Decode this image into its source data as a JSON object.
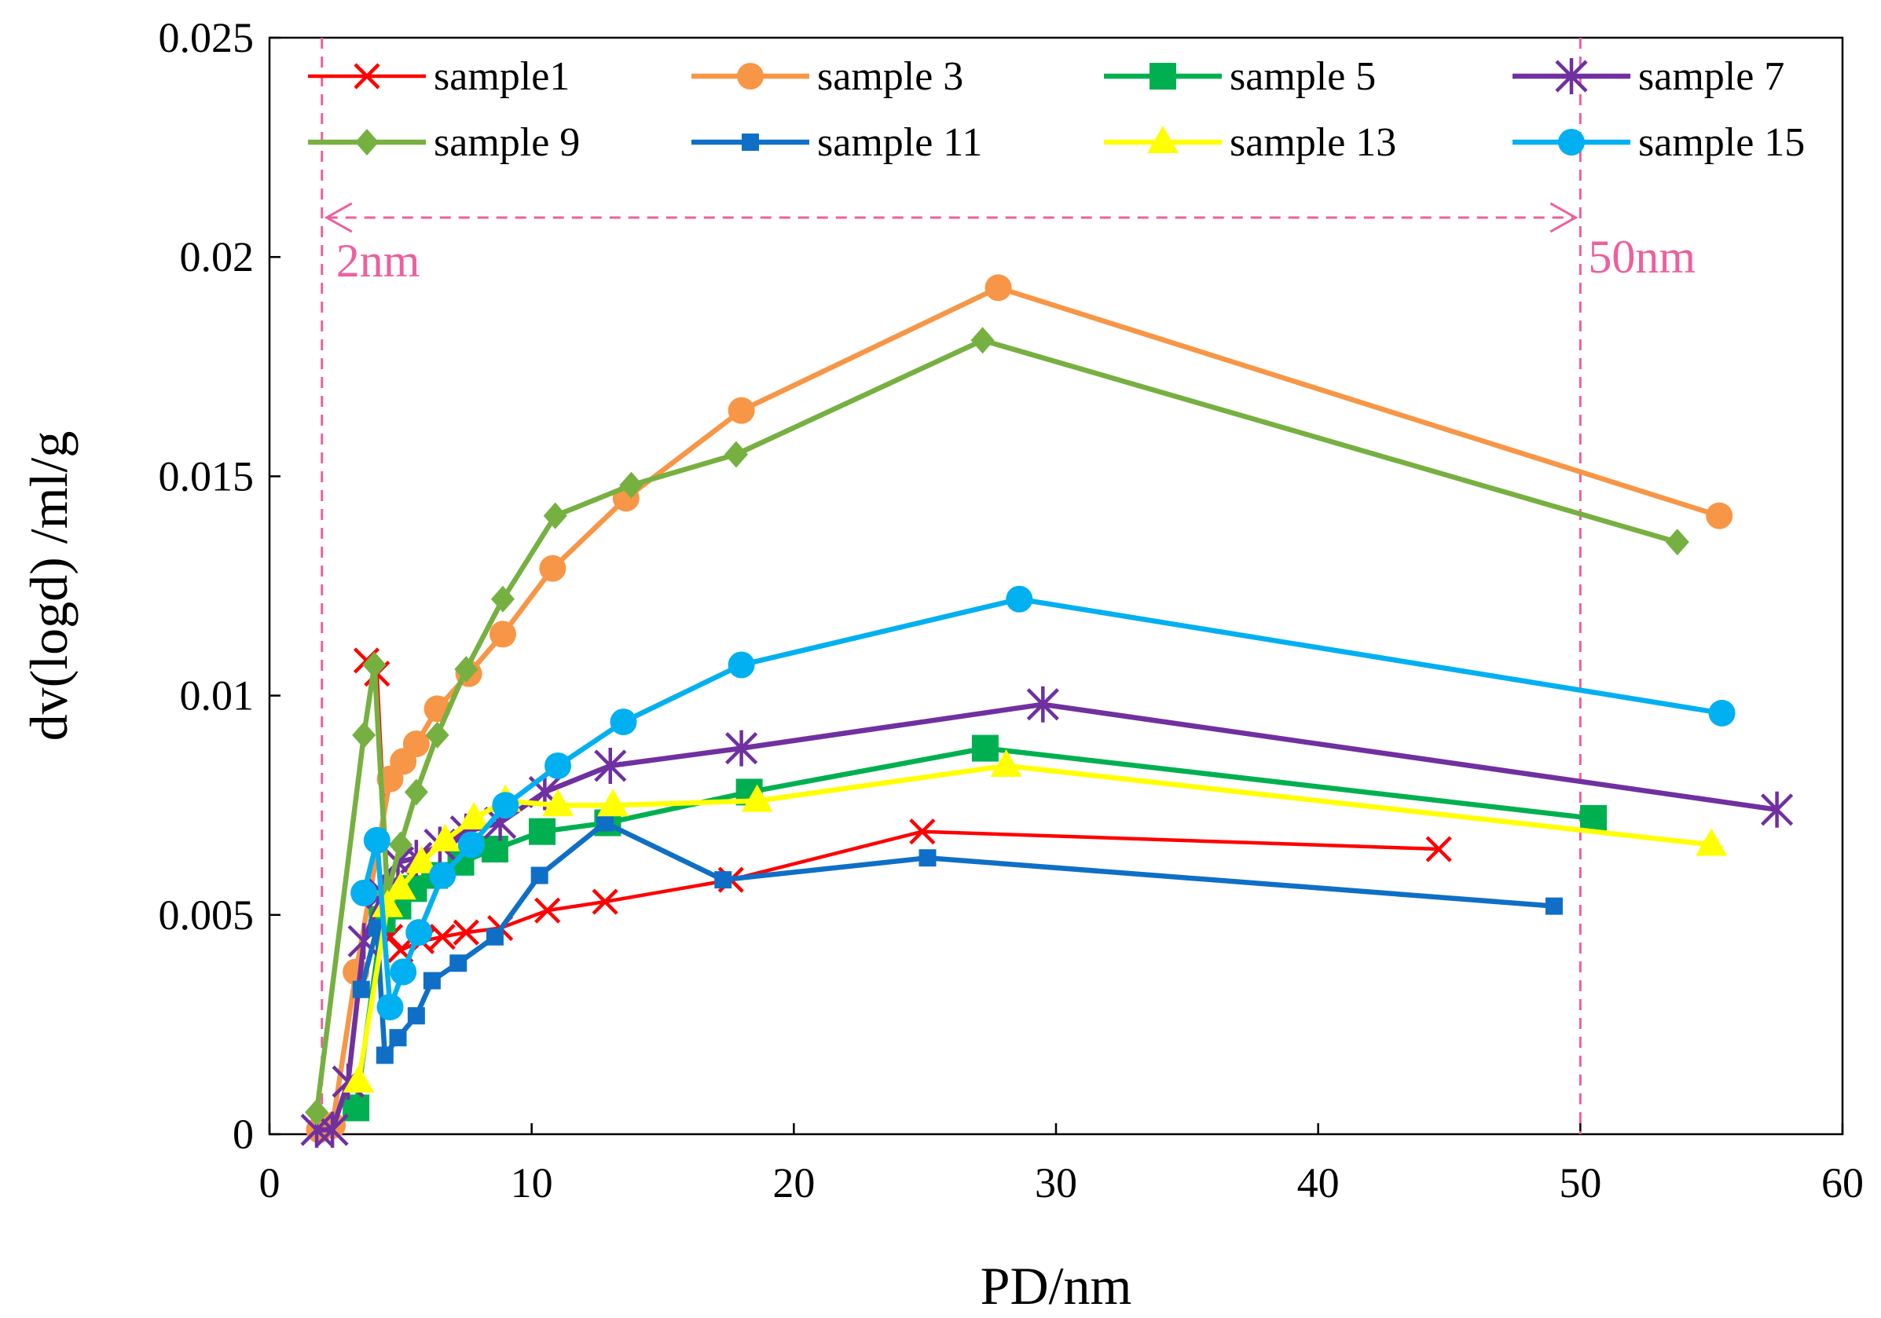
{
  "chart_data": {
    "type": "line",
    "title": "",
    "xlabel": "PD/nm",
    "ylabel": "dv(logd) /ml/g",
    "xlim": [
      0,
      60
    ],
    "ylim": [
      0,
      0.025
    ],
    "x_ticks": [
      0,
      10,
      20,
      30,
      40,
      50,
      60
    ],
    "x_tick_labels": [
      "0",
      "10",
      "20",
      "30",
      "40",
      "50",
      "60"
    ],
    "y_ticks": [
      0,
      0.005,
      0.01,
      0.015,
      0.02,
      0.025
    ],
    "y_tick_labels": [
      "0",
      "0.005",
      "0.01",
      "0.015",
      "0.02",
      "0.025"
    ],
    "grid": false,
    "legend_position": "top",
    "annotations": {
      "left_boundary": {
        "x": 2,
        "label": "2nm"
      },
      "right_boundary": {
        "x": 50,
        "label": "50nm"
      },
      "arrow_y": 0.0209,
      "color": "#ee5f9d"
    },
    "series": [
      {
        "name": "sample1",
        "color": "#ff0000",
        "marker": "x",
        "x": [
          3.7,
          4.1,
          4.6,
          5.0,
          5.8,
          6.6,
          7.5,
          8.8,
          10.6,
          12.8,
          17.6,
          24.9,
          44.6
        ],
        "y": [
          0.0108,
          0.0105,
          0.0045,
          0.0042,
          0.0044,
          0.0045,
          0.0046,
          0.0047,
          0.0051,
          0.0053,
          0.0058,
          0.0069,
          0.0065
        ]
      },
      {
        "name": "sample 3",
        "color": "#f79646",
        "marker": "circle",
        "x": [
          1.9,
          2.4,
          3.3,
          4.6,
          5.1,
          5.6,
          6.4,
          7.6,
          8.9,
          10.8,
          13.6,
          18.0,
          27.8,
          55.3
        ],
        "y": [
          0.0001,
          0.0002,
          0.0037,
          0.0081,
          0.0085,
          0.0089,
          0.0097,
          0.0105,
          0.0114,
          0.0129,
          0.0145,
          0.0165,
          0.0193,
          0.0141
        ]
      },
      {
        "name": "sample 5",
        "color": "#00b050",
        "marker": "square",
        "x": [
          3.3,
          4.3,
          4.9,
          5.5,
          6.3,
          7.3,
          8.6,
          10.4,
          12.9,
          18.3,
          27.3,
          50.5
        ],
        "y": [
          0.0006,
          0.0049,
          0.0052,
          0.0056,
          0.0059,
          0.0062,
          0.0065,
          0.0069,
          0.0071,
          0.0078,
          0.0088,
          0.0072
        ]
      },
      {
        "name": "sample 7",
        "color": "#7030a0",
        "marker": "asterisk",
        "x": [
          1.8,
          2.4,
          3.0,
          3.6,
          4.3,
          4.9,
          5.6,
          6.5,
          7.5,
          8.8,
          10.5,
          13.0,
          18.0,
          29.5,
          57.5
        ],
        "y": [
          0.0001,
          0.0001,
          0.0012,
          0.0044,
          0.0055,
          0.0062,
          0.0063,
          0.0066,
          0.0069,
          0.0071,
          0.0078,
          0.0084,
          0.0088,
          0.0098,
          0.0074
        ]
      },
      {
        "name": "sample 9",
        "color": "#76b041",
        "marker": "diamond",
        "x": [
          1.8,
          3.6,
          4.0,
          4.5,
          5.0,
          5.6,
          6.4,
          7.5,
          8.9,
          10.9,
          13.8,
          17.8,
          27.2,
          53.7
        ],
        "y": [
          0.0005,
          0.0091,
          0.0107,
          0.0055,
          0.0066,
          0.0078,
          0.0091,
          0.0106,
          0.0122,
          0.0141,
          0.0148,
          0.0155,
          0.0181,
          0.0135
        ]
      },
      {
        "name": "sample 11",
        "color": "#0f6fc6",
        "marker": "small-square",
        "x": [
          3.5,
          4.1,
          4.4,
          4.9,
          5.6,
          6.2,
          7.2,
          8.6,
          10.3,
          12.8,
          17.3,
          25.1,
          49.0
        ],
        "y": [
          0.0033,
          0.0047,
          0.0018,
          0.0022,
          0.0027,
          0.0035,
          0.0039,
          0.0045,
          0.0059,
          0.0071,
          0.0058,
          0.0063,
          0.0052
        ]
      },
      {
        "name": "sample 13",
        "color": "#ffff00",
        "marker": "triangle",
        "x": [
          3.4,
          4.5,
          5.0,
          5.8,
          6.7,
          7.8,
          9.0,
          11.0,
          13.1,
          18.6,
          28.1,
          55.0
        ],
        "y": [
          0.0012,
          0.0052,
          0.0056,
          0.0062,
          0.0067,
          0.0072,
          0.0076,
          0.0075,
          0.0075,
          0.0076,
          0.0084,
          0.0066
        ]
      },
      {
        "name": "sample 15",
        "color": "#00b0f0",
        "marker": "circle",
        "x": [
          3.6,
          4.1,
          4.6,
          5.1,
          5.7,
          6.6,
          7.7,
          9.0,
          11.0,
          13.5,
          18.0,
          28.6,
          55.4
        ],
        "y": [
          0.0055,
          0.0067,
          0.0029,
          0.0037,
          0.0046,
          0.0059,
          0.0066,
          0.0075,
          0.0084,
          0.0094,
          0.0107,
          0.0122,
          0.0096
        ]
      }
    ]
  }
}
